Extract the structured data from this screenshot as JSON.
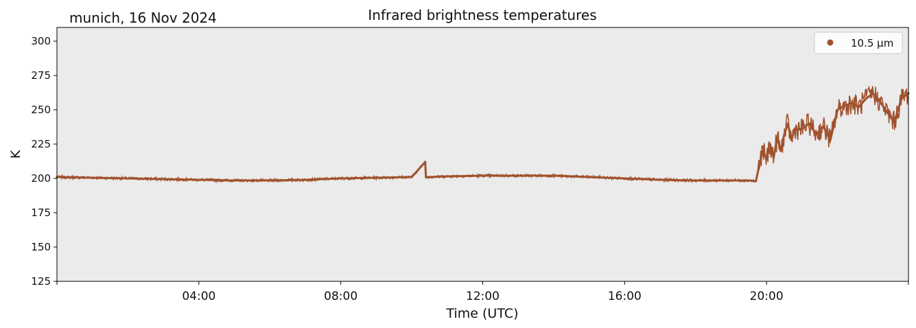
{
  "chart_data": {
    "type": "scatter",
    "title": "Infrared brightness temperatures",
    "subtitle": "munich, 16 Nov 2024",
    "xlabel": "Time (UTC)",
    "ylabel": "K",
    "xlim": [
      "00:00",
      "24:00"
    ],
    "ylim": [
      125,
      310
    ],
    "xticks": [
      "04:00",
      "08:00",
      "12:00",
      "16:00",
      "20:00"
    ],
    "yticks": [
      125,
      150,
      175,
      200,
      225,
      250,
      275,
      300
    ],
    "grid": false,
    "legend_position": "top-right",
    "background": "#ebebeb",
    "series": [
      {
        "name": "10.5 µm",
        "color": "#a0522d",
        "x_hours": [
          0,
          1,
          2,
          3,
          4,
          5,
          6,
          7,
          8,
          9,
          10,
          10.38,
          10.4,
          10.5,
          11,
          12,
          13,
          14,
          15,
          16,
          17,
          18,
          19,
          19.5,
          19.7,
          19.8,
          19.9,
          20.0,
          20.1,
          20.2,
          20.3,
          20.4,
          20.5,
          20.6,
          20.7,
          20.8,
          21.0,
          21.2,
          21.4,
          21.6,
          21.8,
          22.0,
          22.2,
          22.4,
          22.6,
          22.8,
          23.0,
          23.2,
          23.4,
          23.6,
          23.8,
          24.0
        ],
        "values": [
          201,
          200.5,
          200,
          199.5,
          199,
          198.5,
          198.5,
          199,
          200,
          200.5,
          201,
          212,
          201,
          201,
          201.5,
          202,
          202,
          202,
          201,
          200,
          199,
          198.5,
          198.5,
          198.5,
          198,
          210,
          220,
          214,
          225,
          215,
          230,
          220,
          232,
          240,
          228,
          236,
          236,
          240,
          232,
          238,
          228,
          250,
          253,
          255,
          252,
          258,
          262,
          256,
          248,
          241,
          258,
          262
        ]
      }
    ]
  }
}
